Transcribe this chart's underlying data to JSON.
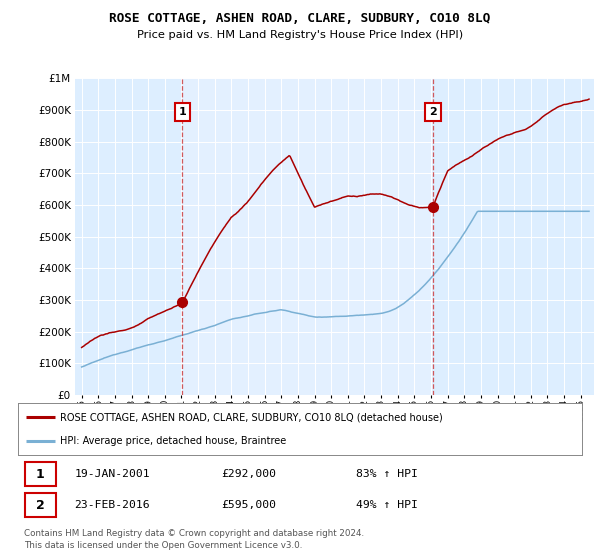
{
  "title": "ROSE COTTAGE, ASHEN ROAD, CLARE, SUDBURY, CO10 8LQ",
  "subtitle": "Price paid vs. HM Land Registry's House Price Index (HPI)",
  "sale1_date": 2001.05,
  "sale1_price": 292000,
  "sale1_label": "1",
  "sale1_hpi_pct": "83% ↑ HPI",
  "sale1_date_str": "19-JAN-2001",
  "sale2_date": 2016.13,
  "sale2_price": 595000,
  "sale2_label": "2",
  "sale2_hpi_pct": "49% ↑ HPI",
  "sale2_date_str": "23-FEB-2016",
  "red_line_color": "#aa0000",
  "blue_line_color": "#7ab0d4",
  "vline_color": "#cc3333",
  "ylim_min": 0,
  "ylim_max": 1000000,
  "xlim_min": 1994.6,
  "xlim_max": 2025.8,
  "legend_label1": "ROSE COTTAGE, ASHEN ROAD, CLARE, SUDBURY, CO10 8LQ (detached house)",
  "legend_label2": "HPI: Average price, detached house, Braintree",
  "footer1": "Contains HM Land Registry data © Crown copyright and database right 2024.",
  "footer2": "This data is licensed under the Open Government Licence v3.0.",
  "background_color": "#ffffff",
  "plot_bg_color": "#ddeeff",
  "plot_bg_highlight": "#e8f2ff"
}
